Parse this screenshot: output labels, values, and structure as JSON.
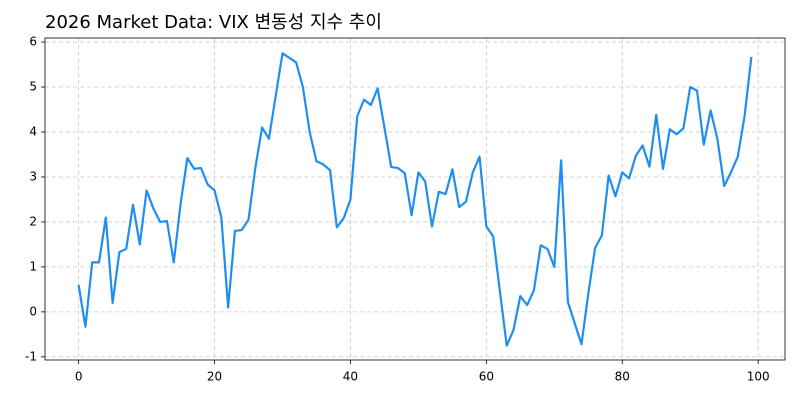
{
  "chart_data": {
    "type": "line",
    "title": "2026 Market Data: VIX 변동성 지수 추이",
    "x": [
      0,
      1,
      2,
      3,
      4,
      5,
      6,
      7,
      8,
      9,
      10,
      11,
      12,
      13,
      14,
      15,
      16,
      17,
      18,
      19,
      20,
      21,
      22,
      23,
      24,
      25,
      26,
      27,
      28,
      29,
      30,
      31,
      32,
      33,
      34,
      35,
      36,
      37,
      38,
      39,
      40,
      41,
      42,
      43,
      44,
      45,
      46,
      47,
      48,
      49,
      50,
      51,
      52,
      53,
      54,
      55,
      56,
      57,
      58,
      59,
      60,
      61,
      62,
      63,
      64,
      65,
      66,
      67,
      68,
      69,
      70,
      71,
      72,
      73,
      74,
      75,
      76,
      77,
      78,
      79,
      80,
      81,
      82,
      83,
      84,
      85,
      86,
      87,
      88,
      89,
      90,
      91,
      92,
      93,
      94,
      95,
      96,
      97,
      98,
      99
    ],
    "values": [
      0.6,
      -0.33,
      1.1,
      1.1,
      2.1,
      0.2,
      1.33,
      1.4,
      2.38,
      1.5,
      2.7,
      2.3,
      2.0,
      2.02,
      1.1,
      2.4,
      3.42,
      3.18,
      3.2,
      2.83,
      2.7,
      2.1,
      0.1,
      1.8,
      1.82,
      2.05,
      3.2,
      4.1,
      3.85,
      4.8,
      5.75,
      5.65,
      5.55,
      5.0,
      4.0,
      3.35,
      3.28,
      3.15,
      1.88,
      2.08,
      2.5,
      4.35,
      4.72,
      4.6,
      4.97,
      4.1,
      3.22,
      3.2,
      3.08,
      2.15,
      3.1,
      2.9,
      1.9,
      2.67,
      2.62,
      3.17,
      2.33,
      2.45,
      3.1,
      3.45,
      1.9,
      1.68,
      0.45,
      -0.75,
      -0.4,
      0.35,
      0.15,
      0.48,
      1.48,
      1.4,
      1.0,
      3.37,
      0.22,
      -0.25,
      -0.72,
      0.4,
      1.42,
      1.7,
      3.03,
      2.57,
      3.1,
      2.97,
      3.47,
      3.7,
      3.23,
      4.38,
      3.18,
      4.06,
      3.95,
      4.08,
      5.0,
      4.92,
      3.72,
      4.48,
      3.85,
      2.8,
      3.1,
      3.45,
      4.35,
      5.67
    ],
    "color": "#1e8ff0",
    "xlim": [
      -4.95,
      103.95
    ],
    "xticks": [
      0,
      20,
      40,
      60,
      80,
      100
    ],
    "ylim": [
      -1.07,
      6.09
    ],
    "yticks": [
      -1,
      0,
      1,
      2,
      3,
      4,
      5,
      6
    ],
    "grid": true
  }
}
